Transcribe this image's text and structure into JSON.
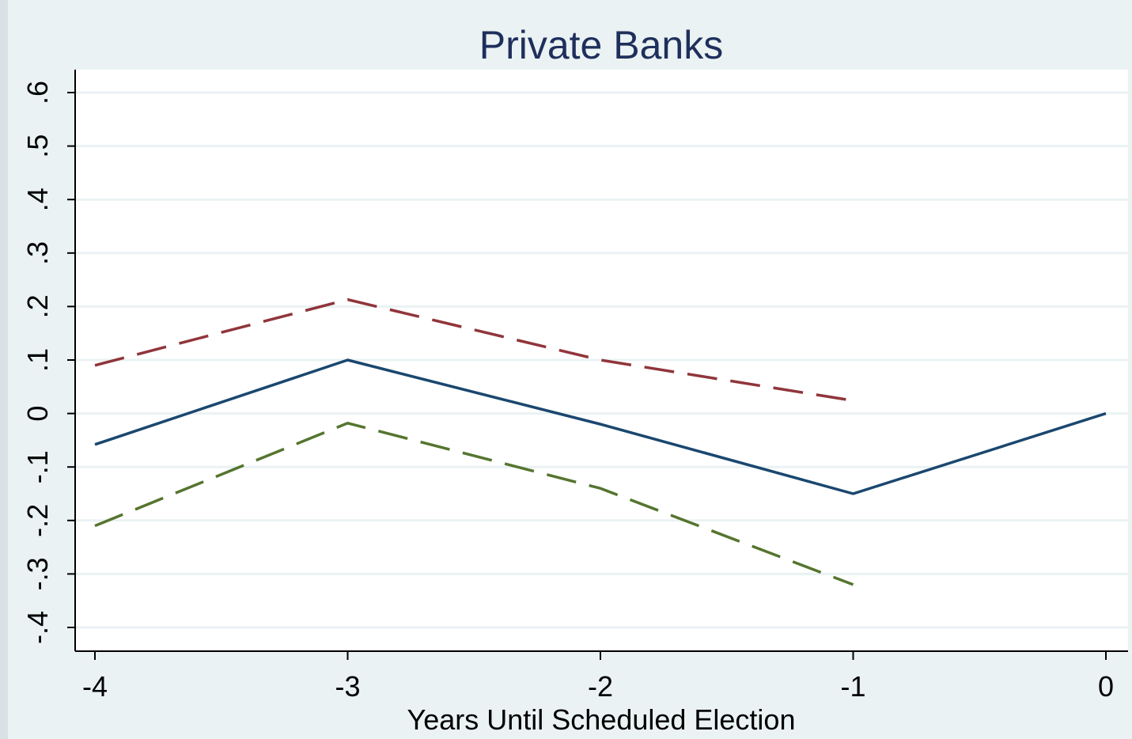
{
  "chart_data": {
    "type": "line",
    "title": "Private Banks",
    "xlabel": "Years Until Scheduled Election",
    "ylabel": "",
    "x": [
      -4,
      -3,
      -2,
      -1,
      0
    ],
    "xlim": [
      -4,
      0
    ],
    "ylim": [
      -0.4,
      0.6
    ],
    "x_ticks": [
      -4,
      -3,
      -2,
      -1,
      0
    ],
    "x_tick_labels": [
      "-4",
      "-3",
      "-2",
      "-1",
      "0"
    ],
    "y_ticks": [
      -0.4,
      -0.3,
      -0.2,
      -0.1,
      0,
      0.1,
      0.2,
      0.3,
      0.4,
      0.5,
      0.6
    ],
    "y_tick_labels": [
      "-.4",
      "-.3",
      "-.2",
      "-.1",
      "0",
      ".1",
      ".2",
      ".3",
      ".4",
      ".5",
      ".6"
    ],
    "grid": "horizontal",
    "legend": "none",
    "series": [
      {
        "style": "solid",
        "color": "#1a476f",
        "x": [
          -4,
          -3,
          -2,
          -1,
          0
        ],
        "values": [
          -0.058,
          0.1,
          -0.02,
          -0.15,
          0
        ]
      },
      {
        "style": "dashed",
        "color": "#90353b",
        "x": [
          -4,
          -3,
          -2,
          -1
        ],
        "values": [
          0.09,
          0.213,
          0.1,
          0.024
        ]
      },
      {
        "style": "dashed",
        "color": "#55752f",
        "x": [
          -4,
          -3,
          -2,
          -1
        ],
        "values": [
          -0.21,
          -0.018,
          -0.14,
          -0.32
        ]
      }
    ]
  }
}
